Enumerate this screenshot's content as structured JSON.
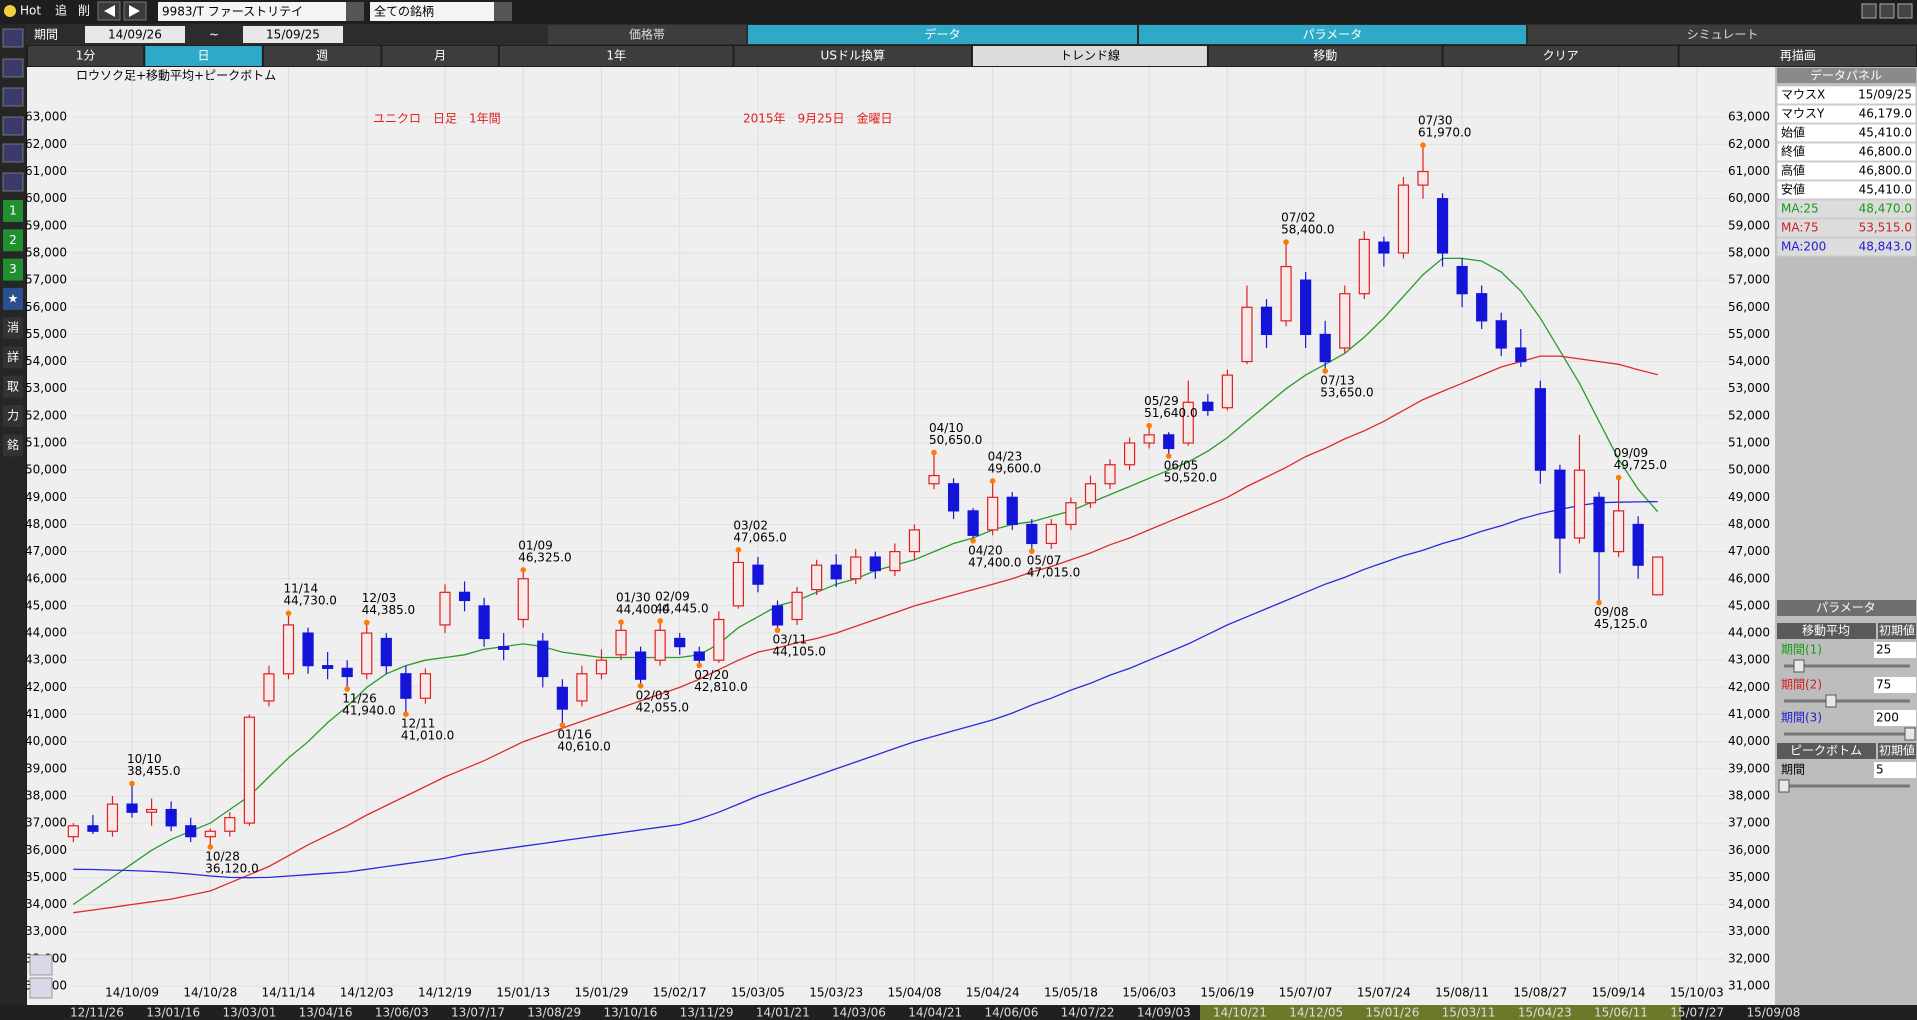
{
  "toolbar": {
    "hot": "Hot",
    "add": "追",
    "delete": "削",
    "symbol": "9983/T ファーストリテイ",
    "universe": "全ての銘柄"
  },
  "period_bar": {
    "label": "期間",
    "from": "14/09/26",
    "sep": "~",
    "to": "15/09/25"
  },
  "tabs": [
    "価格帯",
    "データ",
    "パラメータ",
    "シミュレート"
  ],
  "buttons": [
    "1分",
    "日",
    "週",
    "月",
    "1年",
    "USドル換算",
    "トレンド線",
    "移動",
    "クリア",
    "再描画"
  ],
  "side_icons": [
    "1",
    "2",
    "3",
    "★",
    "消",
    "詳",
    "取",
    "力",
    "銘"
  ],
  "data_panel": {
    "title": "データパネル",
    "rows": [
      [
        "マウスX",
        "15/09/25"
      ],
      [
        "マウスY",
        "46,179.0"
      ],
      [
        "始値",
        "45,410.0"
      ],
      [
        "終値",
        "46,800.0"
      ],
      [
        "高値",
        "46,800.0"
      ],
      [
        "安値",
        "45,410.0"
      ],
      [
        "MA:25",
        "48,470.0"
      ],
      [
        "MA:75",
        "53,515.0"
      ],
      [
        "MA:200",
        "48,843.0"
      ]
    ]
  },
  "parameter_panel": {
    "title": "パラメータ",
    "ma_header": [
      "移動平均",
      "初期値"
    ],
    "ma_rows": [
      [
        "期間(1)",
        "25"
      ],
      [
        "期間(2)",
        "75"
      ],
      [
        "期間(3)",
        "200"
      ]
    ],
    "peak_header": [
      "ピークボトム",
      "初期値"
    ],
    "peak_rows": [
      [
        "期間",
        "5"
      ]
    ]
  },
  "timeline": [
    "12/11/26",
    "13/01/16",
    "13/03/01",
    "13/04/16",
    "13/06/03",
    "13/07/17",
    "13/08/29",
    "13/10/16",
    "13/11/29",
    "14/01/21",
    "14/03/06",
    "14/04/21",
    "14/06/06",
    "14/07/22",
    "14/09/03",
    "14/10/21",
    "14/12/05",
    "15/01/26",
    "15/03/11",
    "15/04/23",
    "15/06/11",
    "15/07/27",
    "15/09/08"
  ],
  "chart_data": {
    "type": "candlestick",
    "subtitle": "ロウソク足+移動平均+ピークボトム",
    "annotations": [
      "ユニクロ　日足　1年間",
      "2015年　9月25日　金曜日"
    ],
    "categories": [
      null,
      null,
      null,
      "14/10/09",
      null,
      null,
      null,
      "14/10/28",
      null,
      null,
      null,
      "14/11/14",
      null,
      null,
      null,
      "14/12/03",
      null,
      null,
      null,
      "14/12/19",
      null,
      null,
      null,
      "15/01/13",
      null,
      null,
      null,
      "15/01/29",
      null,
      null,
      null,
      "15/02/17",
      null,
      null,
      null,
      "15/03/05",
      null,
      null,
      null,
      "15/03/23",
      null,
      null,
      null,
      "15/04/08",
      null,
      null,
      null,
      "15/04/24",
      null,
      null,
      null,
      "15/05/18",
      null,
      null,
      null,
      "15/06/03",
      null,
      null,
      null,
      "15/06/19",
      null,
      null,
      null,
      "15/07/07",
      null,
      null,
      null,
      "15/07/24",
      null,
      null,
      null,
      "15/08/11",
      null,
      null,
      null,
      "15/08/27",
      null,
      null,
      null,
      "15/09/14",
      null,
      null,
      null,
      "15/10/03"
    ],
    "open": [
      36500,
      36900,
      36700,
      37700,
      37400,
      37500,
      36900,
      36500,
      36700,
      37000,
      41500,
      42500,
      44000,
      42800,
      42700,
      42500,
      43800,
      42500,
      41600,
      44300,
      45500,
      45000,
      43500,
      44500,
      43700,
      42000,
      41500,
      42500,
      43200,
      43300,
      43000,
      43800,
      43300,
      43000,
      45000,
      46500,
      45000,
      44500,
      45600,
      46500,
      46000,
      46800,
      46300,
      47000,
      49500,
      49500,
      48500,
      47800,
      49000,
      48000,
      47300,
      48000,
      48800,
      49500,
      50200,
      51000,
      51300,
      51000,
      52500,
      52300,
      54000,
      56000,
      55500,
      57000,
      55000,
      54500,
      56500,
      58400,
      58000,
      60500,
      60000,
      57500,
      56500,
      55500,
      54500,
      53000,
      50000,
      47500,
      49000,
      47000,
      48000,
      45410,
      null,
      null
    ],
    "high": [
      37000,
      37300,
      38000,
      38455,
      37900,
      37800,
      37200,
      36800,
      37400,
      41000,
      42800,
      44730,
      44200,
      43300,
      43000,
      44385,
      44000,
      42800,
      42700,
      45800,
      45900,
      45300,
      44000,
      46325,
      44000,
      42300,
      42800,
      43400,
      44400,
      43500,
      44445,
      44000,
      43500,
      44800,
      47065,
      46800,
      45200,
      45700,
      46700,
      46900,
      47100,
      47000,
      47300,
      48000,
      50650,
      49700,
      48600,
      49600,
      49200,
      48200,
      48200,
      49000,
      49800,
      50400,
      51200,
      51640,
      51400,
      53300,
      52800,
      53700,
      56800,
      56300,
      58400,
      57300,
      55500,
      56800,
      58800,
      58600,
      60800,
      61970,
      60200,
      57800,
      56800,
      55800,
      55200,
      53300,
      50200,
      51300,
      49200,
      49725,
      48300,
      46800,
      null,
      null
    ],
    "low": [
      36300,
      36600,
      36500,
      37200,
      36900,
      36700,
      36300,
      36120,
      36500,
      36900,
      41300,
      42300,
      42500,
      42300,
      41940,
      42300,
      42500,
      41010,
      41400,
      44000,
      44800,
      43500,
      43000,
      44200,
      42000,
      40610,
      41300,
      42300,
      43000,
      42055,
      42800,
      43200,
      42810,
      42900,
      44900,
      45500,
      44105,
      44300,
      45400,
      45700,
      45800,
      46000,
      46100,
      46700,
      49300,
      48200,
      47400,
      47600,
      47800,
      47015,
      47100,
      47800,
      48600,
      49300,
      50000,
      50800,
      50520,
      50900,
      52000,
      52200,
      53900,
      54500,
      55300,
      54500,
      53650,
      54300,
      56300,
      57500,
      57800,
      60000,
      57500,
      56000,
      55200,
      54200,
      53800,
      49500,
      46200,
      47300,
      45125,
      46800,
      46000,
      45410,
      null,
      null
    ],
    "close": [
      36900,
      36700,
      37700,
      37400,
      37500,
      36900,
      36500,
      36700,
      37200,
      40900,
      42500,
      44300,
      42800,
      42700,
      42400,
      44000,
      42800,
      41600,
      42500,
      45500,
      45200,
      43800,
      43400,
      46000,
      42400,
      41200,
      42500,
      43000,
      44100,
      42300,
      44100,
      43500,
      43000,
      44500,
      46600,
      45800,
      44300,
      45500,
      46500,
      46000,
      46800,
      46300,
      47000,
      47800,
      49800,
      48500,
      47600,
      49000,
      48000,
      47300,
      48000,
      48800,
      49500,
      50200,
      51000,
      51300,
      50800,
      52500,
      52200,
      53500,
      56000,
      55000,
      57500,
      55000,
      54000,
      56500,
      58500,
      58000,
      60500,
      61000,
      58000,
      56500,
      55500,
      54500,
      54000,
      50000,
      47500,
      50000,
      47000,
      48500,
      46500,
      46800,
      null,
      null
    ],
    "up_color": "#e02020",
    "down_color": "#1414d8",
    "lines": [
      {
        "color": "#2a9a2a",
        "values": [
          34000,
          34500,
          35000,
          35500,
          36000,
          36400,
          36700,
          37000,
          37500,
          38000,
          38700,
          39400,
          40000,
          40700,
          41300,
          42000,
          42500,
          42800,
          43000,
          43100,
          43200,
          43400,
          43500,
          43600,
          43500,
          43300,
          43200,
          43100,
          43100,
          43100,
          43100,
          43100,
          43200,
          43600,
          44200,
          44600,
          45000,
          45200,
          45500,
          45800,
          46000,
          46300,
          46500,
          46700,
          47000,
          47300,
          47500,
          47800,
          48000,
          48100,
          48300,
          48500,
          48800,
          49100,
          49400,
          49700,
          50000,
          50300,
          50700,
          51200,
          51800,
          52400,
          53000,
          53500,
          53900,
          54300,
          54900,
          55600,
          56400,
          57200,
          57800,
          57800,
          57700,
          57300,
          56600,
          55600,
          54400,
          53200,
          51800,
          50400,
          49300,
          48470,
          null,
          null
        ]
      },
      {
        "color": "#e02a2a",
        "values": [
          33700,
          33800,
          33900,
          34000,
          34100,
          34200,
          34350,
          34500,
          34800,
          35100,
          35400,
          35800,
          36200,
          36550,
          36900,
          37300,
          37650,
          38000,
          38350,
          38700,
          39000,
          39300,
          39650,
          40000,
          40250,
          40500,
          40750,
          41000,
          41250,
          41500,
          41750,
          42000,
          42300,
          42650,
          43000,
          43300,
          43450,
          43650,
          43800,
          44000,
          44250,
          44500,
          44750,
          45000,
          45200,
          45400,
          45600,
          45800,
          46000,
          46250,
          46450,
          46700,
          46950,
          47250,
          47500,
          47800,
          48100,
          48400,
          48700,
          49000,
          49400,
          49750,
          50100,
          50500,
          50800,
          51150,
          51450,
          51800,
          52200,
          52600,
          52900,
          53200,
          53500,
          53800,
          54000,
          54200,
          54200,
          54100,
          54000,
          53900,
          53700,
          53515,
          null,
          null
        ]
      },
      {
        "color": "#2a2ae0",
        "values": [
          35300,
          35290,
          35270,
          35250,
          35220,
          35180,
          35120,
          35050,
          35000,
          34990,
          35000,
          35050,
          35100,
          35150,
          35200,
          35300,
          35400,
          35500,
          35600,
          35700,
          35850,
          35950,
          36050,
          36150,
          36250,
          36350,
          36450,
          36550,
          36650,
          36750,
          36850,
          36950,
          37150,
          37400,
          37700,
          38000,
          38250,
          38500,
          38750,
          39000,
          39250,
          39500,
          39750,
          40000,
          40200,
          40400,
          40600,
          40800,
          41050,
          41350,
          41600,
          41900,
          42150,
          42450,
          42700,
          43000,
          43300,
          43600,
          43950,
          44300,
          44600,
          44900,
          45200,
          45500,
          45800,
          46050,
          46350,
          46600,
          46850,
          47050,
          47300,
          47500,
          47750,
          47950,
          48200,
          48400,
          48550,
          48700,
          48800,
          48820,
          48830,
          48843,
          null,
          null
        ]
      }
    ],
    "peaks": [
      {
        "date": "10/10",
        "value": 38455,
        "label": "38,455.0"
      },
      {
        "date": "11/14",
        "value": 44730,
        "label": "44,730.0"
      },
      {
        "date": "12/03",
        "value": 44385,
        "label": "44,385.0"
      },
      {
        "date": "01/09",
        "value": 46325,
        "label": "46,325.0"
      },
      {
        "date": "01/30",
        "value": 44400,
        "label": "44,400.0"
      },
      {
        "date": "02/09",
        "value": 44445,
        "label": "44,445.0"
      },
      {
        "date": "03/02",
        "value": 47065,
        "label": "47,065.0"
      },
      {
        "date": "04/10",
        "value": 50650,
        "label": "50,650.0"
      },
      {
        "date": "04/23",
        "value": 49600,
        "label": "49,600.0"
      },
      {
        "date": "05/29",
        "value": 51640,
        "label": "51,640.0"
      },
      {
        "date": "07/02",
        "value": 58400,
        "label": "58,400.0"
      },
      {
        "date": "07/30",
        "value": 61970,
        "label": "61,970.0"
      },
      {
        "date": "09/09",
        "value": 49725,
        "label": "49,725.0"
      }
    ],
    "bottoms": [
      {
        "date": "10/28",
        "value": 36120,
        "label": "36,120.0"
      },
      {
        "date": "11/26",
        "value": 41940,
        "label": "41,940.0"
      },
      {
        "date": "12/11",
        "value": 41010,
        "label": "41,010.0"
      },
      {
        "date": "01/16",
        "value": 40610,
        "label": "40,610.0"
      },
      {
        "date": "02/03",
        "value": 42055,
        "label": "42,055.0"
      },
      {
        "date": "02/20",
        "value": 42810,
        "label": "42,810.0"
      },
      {
        "date": "03/11",
        "value": 44105,
        "label": "44,105.0"
      },
      {
        "date": "04/20",
        "value": 47400,
        "label": "47,400.0"
      },
      {
        "date": "05/07",
        "value": 47015,
        "label": "47,015.0"
      },
      {
        "date": "06/05",
        "value": 50520,
        "label": "50,520.0"
      },
      {
        "date": "07/13",
        "value": 53650,
        "label": "53,650.0"
      },
      {
        "date": "09/08",
        "value": 45125,
        "label": "45,125.0"
      }
    ],
    "ylim": [
      30300,
      64850
    ],
    "yticks": [
      {
        "value": 31000,
        "label": "31,000"
      },
      {
        "value": 32000,
        "label": "32,000"
      },
      {
        "value": 33000,
        "label": "33,000"
      },
      {
        "value": 34000,
        "label": "34,000"
      },
      {
        "value": 35000,
        "label": "35,000"
      },
      {
        "value": 36000,
        "label": "36,000"
      },
      {
        "value": 37000,
        "label": "37,000"
      },
      {
        "value": 38000,
        "label": "38,000"
      },
      {
        "value": 39000,
        "label": "39,000"
      },
      {
        "value": 40000,
        "label": "40,000"
      },
      {
        "value": 41000,
        "label": "41,000"
      },
      {
        "value": 42000,
        "label": "42,000"
      },
      {
        "value": 43000,
        "label": "43,000"
      },
      {
        "value": 44000,
        "label": "44,000"
      },
      {
        "value": 45000,
        "label": "45,000"
      },
      {
        "value": 46000,
        "label": "46,000"
      },
      {
        "value": 47000,
        "label": "47,000"
      },
      {
        "value": 48000,
        "label": "48,000"
      },
      {
        "value": 49000,
        "label": "49,000"
      },
      {
        "value": 50000,
        "label": "50,000"
      },
      {
        "value": 51000,
        "label": "51,000"
      },
      {
        "value": 52000,
        "label": "52,000"
      },
      {
        "value": 53000,
        "label": "53,000"
      },
      {
        "value": 54000,
        "label": "54,000"
      },
      {
        "value": 55000,
        "label": "55,000"
      },
      {
        "value": 56000,
        "label": "56,000"
      },
      {
        "value": 57000,
        "label": "57,000"
      },
      {
        "value": 58000,
        "label": "58,000"
      },
      {
        "value": 59000,
        "label": "59,000"
      },
      {
        "value": 60000,
        "label": "60,000"
      },
      {
        "value": 61000,
        "label": "61,000"
      },
      {
        "value": 62000,
        "label": "62,000"
      },
      {
        "value": 63000,
        "label": "63,000"
      }
    ],
    "grid": true
  }
}
